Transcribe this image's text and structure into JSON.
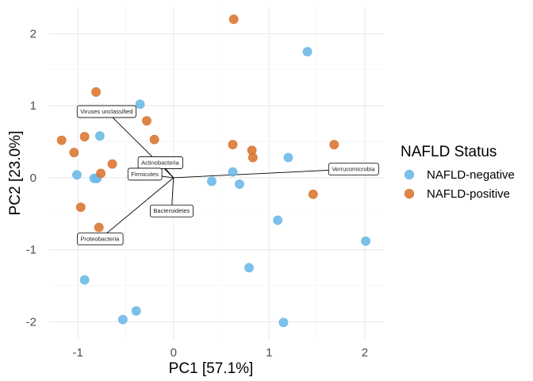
{
  "chart_data": {
    "type": "scatter",
    "xlabel": "PC1 [57.1%]",
    "ylabel": "PC2 [23.0%]",
    "xlim": [
      -1.3,
      2.2
    ],
    "ylim": [
      -2.25,
      2.38
    ],
    "x_ticks": [
      -1,
      0,
      1,
      2
    ],
    "y_ticks": [
      -2,
      -1,
      0,
      1,
      2
    ],
    "x_tick_labels": [
      "-1",
      "0",
      "1",
      "2"
    ],
    "y_tick_labels": [
      "-2",
      "-1",
      "0",
      "1",
      "2"
    ],
    "grid": true,
    "legend": {
      "title": "NAFLD Status",
      "position": "right",
      "entries": [
        "NAFLD-negative",
        "NAFLD-positive"
      ]
    },
    "series": [
      {
        "name": "NAFLD-negative",
        "color": "#6ab8e6",
        "points": [
          {
            "x": 1.4,
            "y": 1.75
          },
          {
            "x": -0.35,
            "y": 1.02
          },
          {
            "x": -0.77,
            "y": 0.58
          },
          {
            "x": -1.01,
            "y": 0.04
          },
          {
            "x": -0.83,
            "y": -0.01
          },
          {
            "x": -0.8,
            "y": -0.01
          },
          {
            "x": 0.62,
            "y": 0.08
          },
          {
            "x": 0.4,
            "y": -0.05
          },
          {
            "x": 0.69,
            "y": -0.09
          },
          {
            "x": 1.2,
            "y": 0.28
          },
          {
            "x": 1.09,
            "y": -0.59
          },
          {
            "x": 2.01,
            "y": -0.88
          },
          {
            "x": 0.79,
            "y": -1.25
          },
          {
            "x": -0.93,
            "y": -1.42
          },
          {
            "x": -0.39,
            "y": -1.85
          },
          {
            "x": -0.53,
            "y": -1.97
          },
          {
            "x": 1.15,
            "y": -2.01
          }
        ]
      },
      {
        "name": "NAFLD-positive",
        "color": "#d9742e",
        "points": [
          {
            "x": 0.63,
            "y": 2.2
          },
          {
            "x": -0.81,
            "y": 1.19
          },
          {
            "x": -0.28,
            "y": 0.79
          },
          {
            "x": -0.2,
            "y": 0.53
          },
          {
            "x": -1.17,
            "y": 0.52
          },
          {
            "x": -0.93,
            "y": 0.57
          },
          {
            "x": -1.04,
            "y": 0.35
          },
          {
            "x": -0.64,
            "y": 0.19
          },
          {
            "x": -0.76,
            "y": 0.06
          },
          {
            "x": 0.62,
            "y": 0.46
          },
          {
            "x": 0.82,
            "y": 0.38
          },
          {
            "x": 0.83,
            "y": 0.28
          },
          {
            "x": 1.68,
            "y": 0.46
          },
          {
            "x": 1.46,
            "y": -0.23
          },
          {
            "x": -0.97,
            "y": -0.41
          },
          {
            "x": -0.78,
            "y": -0.69
          }
        ]
      }
    ],
    "loadings": [
      {
        "label": "Viruses unclassified",
        "x": -0.7,
        "y": 0.92
      },
      {
        "label": "Actinobacteria",
        "x": -0.14,
        "y": 0.21
      },
      {
        "label": "Firmicutes",
        "x": -0.3,
        "y": 0.05
      },
      {
        "label": "Verrucomicrobia",
        "x": 1.88,
        "y": 0.12
      },
      {
        "label": "Bacteroidetes",
        "x": -0.02,
        "y": -0.46
      },
      {
        "label": "Proteobacteria",
        "x": -0.77,
        "y": -0.85
      }
    ]
  }
}
